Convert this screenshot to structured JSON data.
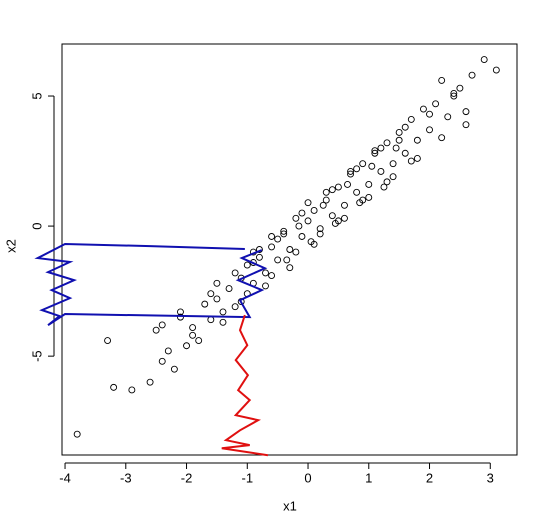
{
  "chart_data": {
    "type": "scatter",
    "x_label": "x1",
    "y_label": "x2",
    "xlim": [
      -4.05,
      3.44
    ],
    "ylim": [
      -8.8,
      7.0
    ],
    "xticks": [
      -4,
      -3,
      -2,
      -1,
      0,
      1,
      2,
      3
    ],
    "yticks": [
      -5,
      0,
      5
    ],
    "series": [
      {
        "mode": "points",
        "color": "#000000",
        "x": [
          -3.8,
          -3.2,
          -2.9,
          -2.6,
          -3.3,
          -2.5,
          -2.4,
          -2.3,
          -2.2,
          -2.1,
          -2.0,
          -1.9,
          -1.8,
          -1.7,
          -1.6,
          -1.5,
          -1.4,
          -1.3,
          -1.2,
          -1.1,
          -1.0,
          -0.9,
          -0.8,
          -0.7,
          -0.6,
          -0.5,
          -0.4,
          -0.3,
          -0.2,
          -0.1,
          0.0,
          0.1,
          0.2,
          0.3,
          0.4,
          0.5,
          0.6,
          0.7,
          0.8,
          0.9,
          1.0,
          1.1,
          1.2,
          1.3,
          1.4,
          1.5,
          1.6,
          1.7,
          1.8,
          1.9,
          2.0,
          2.1,
          2.2,
          2.3,
          2.4,
          2.5,
          2.6,
          2.7,
          2.9,
          3.1,
          -2.4,
          -2.1,
          -1.9,
          -1.6,
          -1.4,
          -1.2,
          -1.0,
          -0.8,
          -0.6,
          -0.4,
          -0.2,
          0.0,
          0.2,
          0.4,
          0.6,
          0.8,
          1.0,
          1.2,
          1.4,
          1.6,
          1.8,
          2.0,
          2.2,
          2.4,
          2.6,
          -1.5,
          -1.1,
          -0.9,
          -0.7,
          -0.5,
          -0.3,
          -0.1,
          0.1,
          0.3,
          0.5,
          0.7,
          0.9,
          1.1,
          1.3,
          1.5,
          1.7,
          -0.9,
          -0.6,
          -0.35,
          -0.15,
          0.05,
          0.25,
          0.45,
          0.65,
          0.85,
          1.05,
          1.25,
          1.45
        ],
        "y": [
          -8.0,
          -6.2,
          -6.3,
          -6.0,
          -4.4,
          -4.0,
          -5.2,
          -4.8,
          -5.5,
          -3.5,
          -4.6,
          -3.9,
          -4.4,
          -3.0,
          -3.6,
          -2.8,
          -3.3,
          -2.4,
          -3.1,
          -2.0,
          -1.5,
          -2.2,
          -1.2,
          -1.8,
          -0.8,
          -1.3,
          -0.2,
          -0.9,
          0.3,
          -0.4,
          0.2,
          0.6,
          -0.3,
          1.0,
          0.4,
          1.5,
          0.8,
          2.0,
          1.3,
          2.4,
          1.6,
          2.9,
          2.1,
          3.2,
          2.4,
          3.6,
          2.8,
          4.1,
          3.3,
          4.5,
          3.7,
          4.7,
          5.6,
          4.2,
          5.0,
          5.3,
          4.4,
          5.8,
          6.4,
          6.0,
          -3.8,
          -3.3,
          -4.2,
          -2.6,
          -3.7,
          -1.8,
          -2.6,
          -0.9,
          -1.9,
          -0.3,
          -1.0,
          0.9,
          -0.1,
          1.4,
          0.3,
          2.2,
          1.1,
          3.0,
          1.9,
          3.8,
          2.6,
          4.3,
          3.4,
          5.1,
          3.9,
          -2.2,
          -2.9,
          -1.4,
          -2.3,
          -0.5,
          -1.6,
          0.5,
          -0.7,
          1.3,
          0.2,
          2.1,
          1.0,
          2.8,
          1.7,
          3.3,
          2.5,
          -1.0,
          -0.4,
          -1.3,
          0.0,
          -0.6,
          0.8,
          0.1,
          1.6,
          0.9,
          2.3,
          1.5,
          3.0
        ]
      },
      {
        "mode": "line",
        "color": "#1010b0",
        "x": [
          -1.04,
          -2.6,
          -4.0,
          -4.45,
          -3.92,
          -4.28,
          -3.85,
          -4.22,
          -3.92,
          -4.38,
          -4.09,
          -4.28,
          -4.0,
          -0.96,
          -1.12,
          -0.76,
          -1.15,
          -0.71,
          -1.09,
          -0.76
        ],
        "y": [
          -0.88,
          -0.77,
          -0.69,
          -1.23,
          -1.38,
          -1.77,
          -2.08,
          -2.46,
          -2.77,
          -3.23,
          -3.46,
          -3.81,
          -3.38,
          -3.5,
          -2.85,
          -2.46,
          -2.08,
          -1.62,
          -1.23,
          -0.92
        ]
      },
      {
        "mode": "line",
        "color": "#e01010",
        "x": [
          -1.04,
          -1.12,
          -1.0,
          -1.19,
          -0.99,
          -1.15,
          -0.96,
          -1.19,
          -0.82,
          -1.12,
          -1.35,
          -0.96,
          -1.42,
          -0.66
        ],
        "y": [
          -3.42,
          -4.0,
          -4.58,
          -5.15,
          -5.73,
          -6.31,
          -6.69,
          -7.27,
          -7.46,
          -7.85,
          -8.23,
          -8.42,
          -8.54,
          -8.81
        ]
      }
    ]
  }
}
